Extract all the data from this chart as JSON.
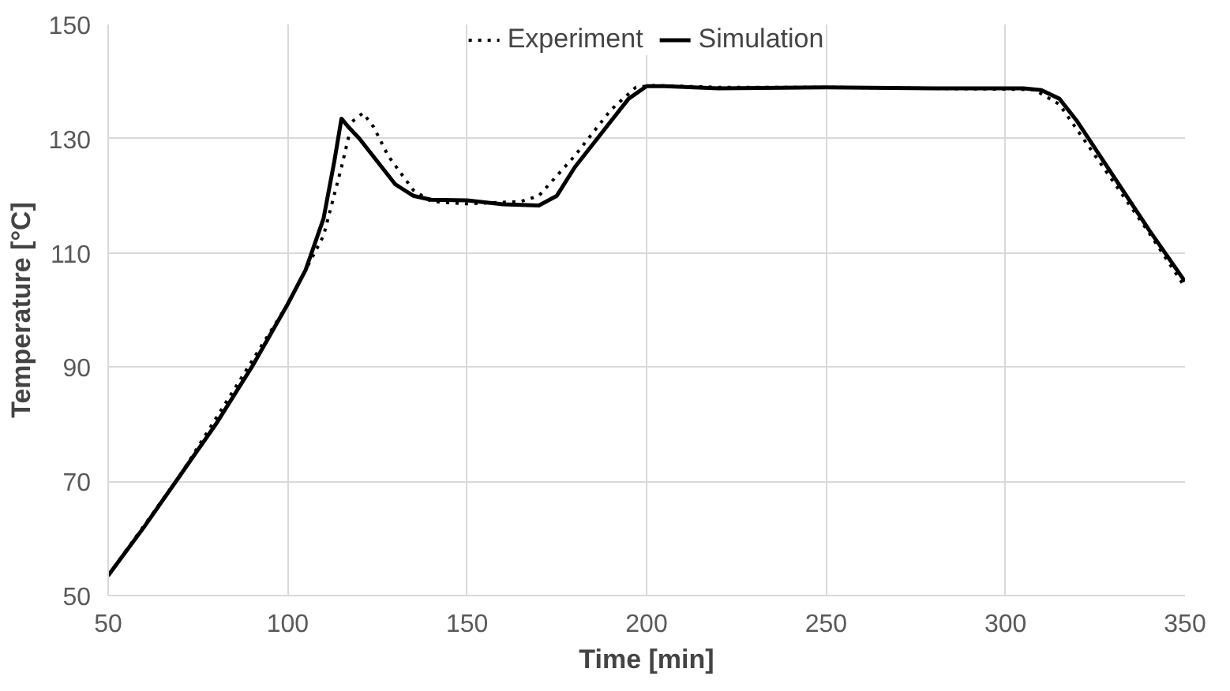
{
  "chart_data": {
    "type": "line",
    "xlabel": "Time [min]",
    "ylabel": "Temperature [°C]",
    "xlim": [
      50,
      350
    ],
    "ylim": [
      50,
      150
    ],
    "xticks": [
      50,
      100,
      150,
      200,
      250,
      300,
      350
    ],
    "yticks": [
      50,
      70,
      90,
      110,
      130,
      150
    ],
    "grid": true,
    "legend": "top",
    "marker": "none",
    "series": [
      {
        "name": "Experiment",
        "color": "#000000",
        "line_style": "dotted",
        "x": [
          50,
          70,
          90,
          100,
          110,
          115,
          118,
          121,
          124,
          128,
          135,
          140,
          150,
          165,
          170,
          180,
          190,
          197,
          202,
          220,
          250,
          280,
          308,
          315,
          320,
          330,
          340,
          350
        ],
        "values": [
          53.5,
          71,
          91,
          101,
          113,
          125,
          133,
          134.5,
          132,
          127,
          121,
          119,
          118.6,
          119,
          120,
          127,
          135,
          139,
          139.3,
          139,
          139,
          138.8,
          138.6,
          136,
          131.5,
          122.5,
          113.5,
          104
        ]
      },
      {
        "name": "Simulation",
        "color": "#000000",
        "line_style": "solid",
        "x": [
          50,
          60,
          70,
          80,
          90,
          100,
          105,
          110,
          113,
          115,
          117,
          120,
          125,
          130,
          135,
          140,
          150,
          160,
          170,
          175,
          180,
          190,
          195,
          200,
          205,
          220,
          250,
          280,
          305,
          310,
          315,
          320,
          330,
          340,
          350
        ],
        "values": [
          53.5,
          62,
          71,
          80,
          90,
          101,
          107,
          116,
          126,
          133.5,
          132,
          130,
          126,
          122,
          120,
          119.3,
          119.2,
          118.5,
          118.3,
          120,
          125,
          133,
          137,
          139.2,
          139.2,
          138.8,
          139,
          138.8,
          138.8,
          138.5,
          137,
          133,
          123.5,
          114,
          105
        ]
      }
    ]
  }
}
